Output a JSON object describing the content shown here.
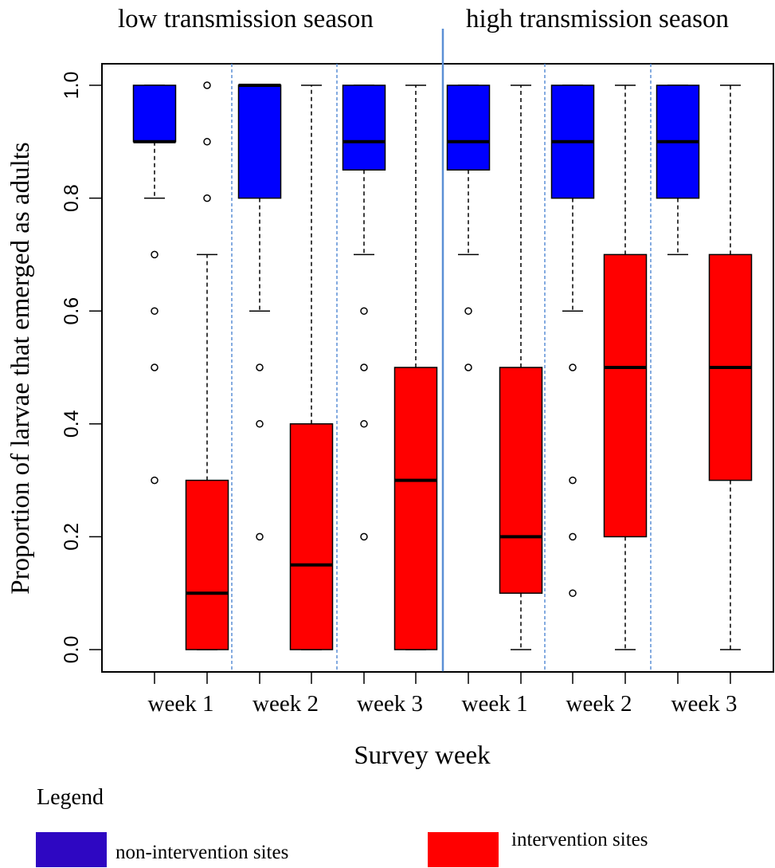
{
  "seasons": {
    "low": "low transmission season",
    "high": "high transmission season"
  },
  "legend": {
    "title": "Legend",
    "items": [
      {
        "label": "non-intervention sites",
        "color": "#0000ff"
      },
      {
        "label": "intervention sites",
        "color": "#ff0000"
      }
    ]
  },
  "colors": {
    "non_intervention": "#0000ff",
    "intervention": "#ff0000",
    "legend_non_intervention": "#2e07c2",
    "legend_intervention": "#ff0000",
    "separator": "#5b8fd6"
  },
  "chart_data": {
    "type": "boxplot",
    "title": "",
    "xlabel": "Survey week",
    "ylabel": "Proportion of larvae that emerged as adults",
    "ylim": [
      0,
      1
    ],
    "yticks": [
      "0.0",
      "0.2",
      "0.4",
      "0.6",
      "0.8",
      "1.0"
    ],
    "categories": [
      "week 1",
      "week 2",
      "week 3",
      "week 1",
      "week 2",
      "week 3"
    ],
    "groups": [
      "low transmission season",
      "low transmission season",
      "low transmission season",
      "high transmission season",
      "high transmission season",
      "high transmission season"
    ],
    "series": [
      {
        "name": "non-intervention sites",
        "color": "#0000ff",
        "boxes": [
          {
            "q1": 0.9,
            "median": 0.9,
            "q3": 1.0,
            "whisker_low": 0.8,
            "whisker_high": 1.0,
            "outliers": [
              0.7,
              0.6,
              0.5,
              0.3
            ]
          },
          {
            "q1": 0.8,
            "median": 1.0,
            "q3": 1.0,
            "whisker_low": 0.6,
            "whisker_high": 1.0,
            "outliers": [
              0.5,
              0.4,
              0.2
            ]
          },
          {
            "q1": 0.85,
            "median": 0.9,
            "q3": 1.0,
            "whisker_low": 0.7,
            "whisker_high": 1.0,
            "outliers": [
              0.6,
              0.5,
              0.4,
              0.2
            ]
          },
          {
            "q1": 0.85,
            "median": 0.9,
            "q3": 1.0,
            "whisker_low": 0.7,
            "whisker_high": 1.0,
            "outliers": [
              0.6,
              0.5
            ]
          },
          {
            "q1": 0.8,
            "median": 0.9,
            "q3": 1.0,
            "whisker_low": 0.6,
            "whisker_high": 1.0,
            "outliers": [
              0.5,
              0.3,
              0.2,
              0.1
            ]
          },
          {
            "q1": 0.8,
            "median": 0.9,
            "q3": 1.0,
            "whisker_low": 0.7,
            "whisker_high": 1.0,
            "outliers": []
          }
        ]
      },
      {
        "name": "intervention sites",
        "color": "#ff0000",
        "boxes": [
          {
            "q1": 0.0,
            "median": 0.1,
            "q3": 0.3,
            "whisker_low": 0.0,
            "whisker_high": 0.7,
            "outliers": [
              0.8,
              0.9,
              1.0
            ]
          },
          {
            "q1": 0.0,
            "median": 0.15,
            "q3": 0.4,
            "whisker_low": 0.0,
            "whisker_high": 1.0,
            "outliers": []
          },
          {
            "q1": 0.0,
            "median": 0.3,
            "q3": 0.5,
            "whisker_low": 0.0,
            "whisker_high": 1.0,
            "outliers": []
          },
          {
            "q1": 0.1,
            "median": 0.2,
            "q3": 0.5,
            "whisker_low": 0.0,
            "whisker_high": 1.0,
            "outliers": []
          },
          {
            "q1": 0.2,
            "median": 0.5,
            "q3": 0.7,
            "whisker_low": 0.0,
            "whisker_high": 1.0,
            "outliers": []
          },
          {
            "q1": 0.3,
            "median": 0.5,
            "q3": 0.7,
            "whisker_low": 0.0,
            "whisker_high": 1.0,
            "outliers": []
          }
        ]
      }
    ]
  }
}
